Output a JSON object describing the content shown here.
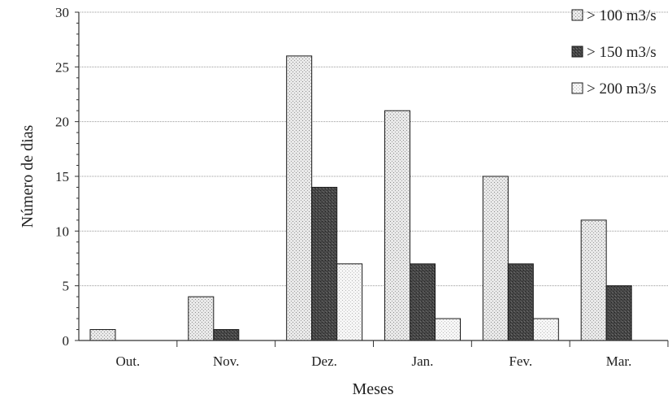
{
  "chart_data": {
    "type": "bar",
    "categories": [
      "Out.",
      "Nov.",
      "Dez.",
      "Jan.",
      "Fev.",
      "Mar."
    ],
    "series": [
      {
        "name": "> 100 m3/s",
        "values": [
          1,
          4,
          26,
          21,
          15,
          11
        ],
        "pattern": "light-stipple"
      },
      {
        "name": "> 150 m3/s",
        "values": [
          0,
          1,
          14,
          7,
          7,
          5
        ],
        "pattern": "dark-stipple"
      },
      {
        "name": "> 200 m3/s",
        "values": [
          0,
          0,
          7,
          2,
          2,
          0
        ],
        "pattern": "very-light-stipple"
      }
    ],
    "title": "",
    "xlabel": "Meses",
    "ylabel": "Número de dias",
    "ylim": [
      0,
      30
    ],
    "yticks": [
      "0",
      "5",
      "10",
      "15",
      "20",
      "25",
      "30"
    ],
    "grid": true,
    "legend_position": "top-right"
  }
}
